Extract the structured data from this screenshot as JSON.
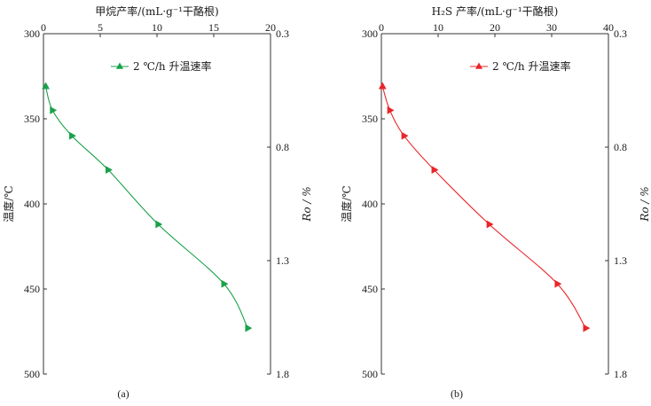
{
  "chart_data": [
    {
      "type": "line",
      "panel_label": "(a)",
      "title": "甲烷产率/(mL·g⁻¹干酪根)",
      "xlim": [
        0,
        20
      ],
      "x_ticks": [
        "0",
        "5",
        "10",
        "15",
        "20"
      ],
      "ylabel": "温度/℃",
      "ylim": [
        300,
        500
      ],
      "y_inverted": true,
      "y_ticks": [
        "300",
        "350",
        "400",
        "450",
        "500"
      ],
      "ylabel_right": "Ro / %",
      "ylim_right": [
        0.3,
        1.8
      ],
      "y_ticks_right": [
        "0.3",
        "0.8",
        "1.3",
        "1.8"
      ],
      "legend": "2 ℃/h 升温速率",
      "color": "#1aa14a",
      "series": [
        {
          "name": "2 ℃/h 升温速率",
          "x": [
            0.2,
            0.8,
            2.5,
            5.7,
            10.1,
            15.9,
            18.0
          ],
          "y": [
            331,
            345,
            360,
            380,
            412,
            447,
            473
          ],
          "markers": [
            "up",
            "right",
            "right",
            "right",
            "right",
            "right",
            "right"
          ]
        }
      ]
    },
    {
      "type": "line",
      "panel_label": "(b)",
      "title": "H₂S 产率/(mL·g⁻¹干酪根)",
      "xlim": [
        0,
        40
      ],
      "x_ticks": [
        "0",
        "10",
        "20",
        "30",
        "40"
      ],
      "ylabel": "温度/℃",
      "ylim": [
        300,
        500
      ],
      "y_inverted": true,
      "y_ticks": [
        "300",
        "350",
        "400",
        "450",
        "500"
      ],
      "ylabel_right": "Ro / %",
      "ylim_right": [
        0.3,
        1.8
      ],
      "y_ticks_right": [
        "0.3",
        "0.8",
        "1.3",
        "1.8"
      ],
      "legend": "2 ℃/h 升温速率",
      "color": "#e8262a",
      "series": [
        {
          "name": "2 ℃/h 升温速率",
          "x": [
            0.2,
            1.5,
            4.0,
            9.3,
            19.0,
            31.0,
            36.0
          ],
          "y": [
            331,
            345,
            360,
            380,
            412,
            447,
            473
          ],
          "markers": [
            "up",
            "right",
            "right",
            "right",
            "right",
            "right",
            "right"
          ]
        }
      ]
    }
  ]
}
